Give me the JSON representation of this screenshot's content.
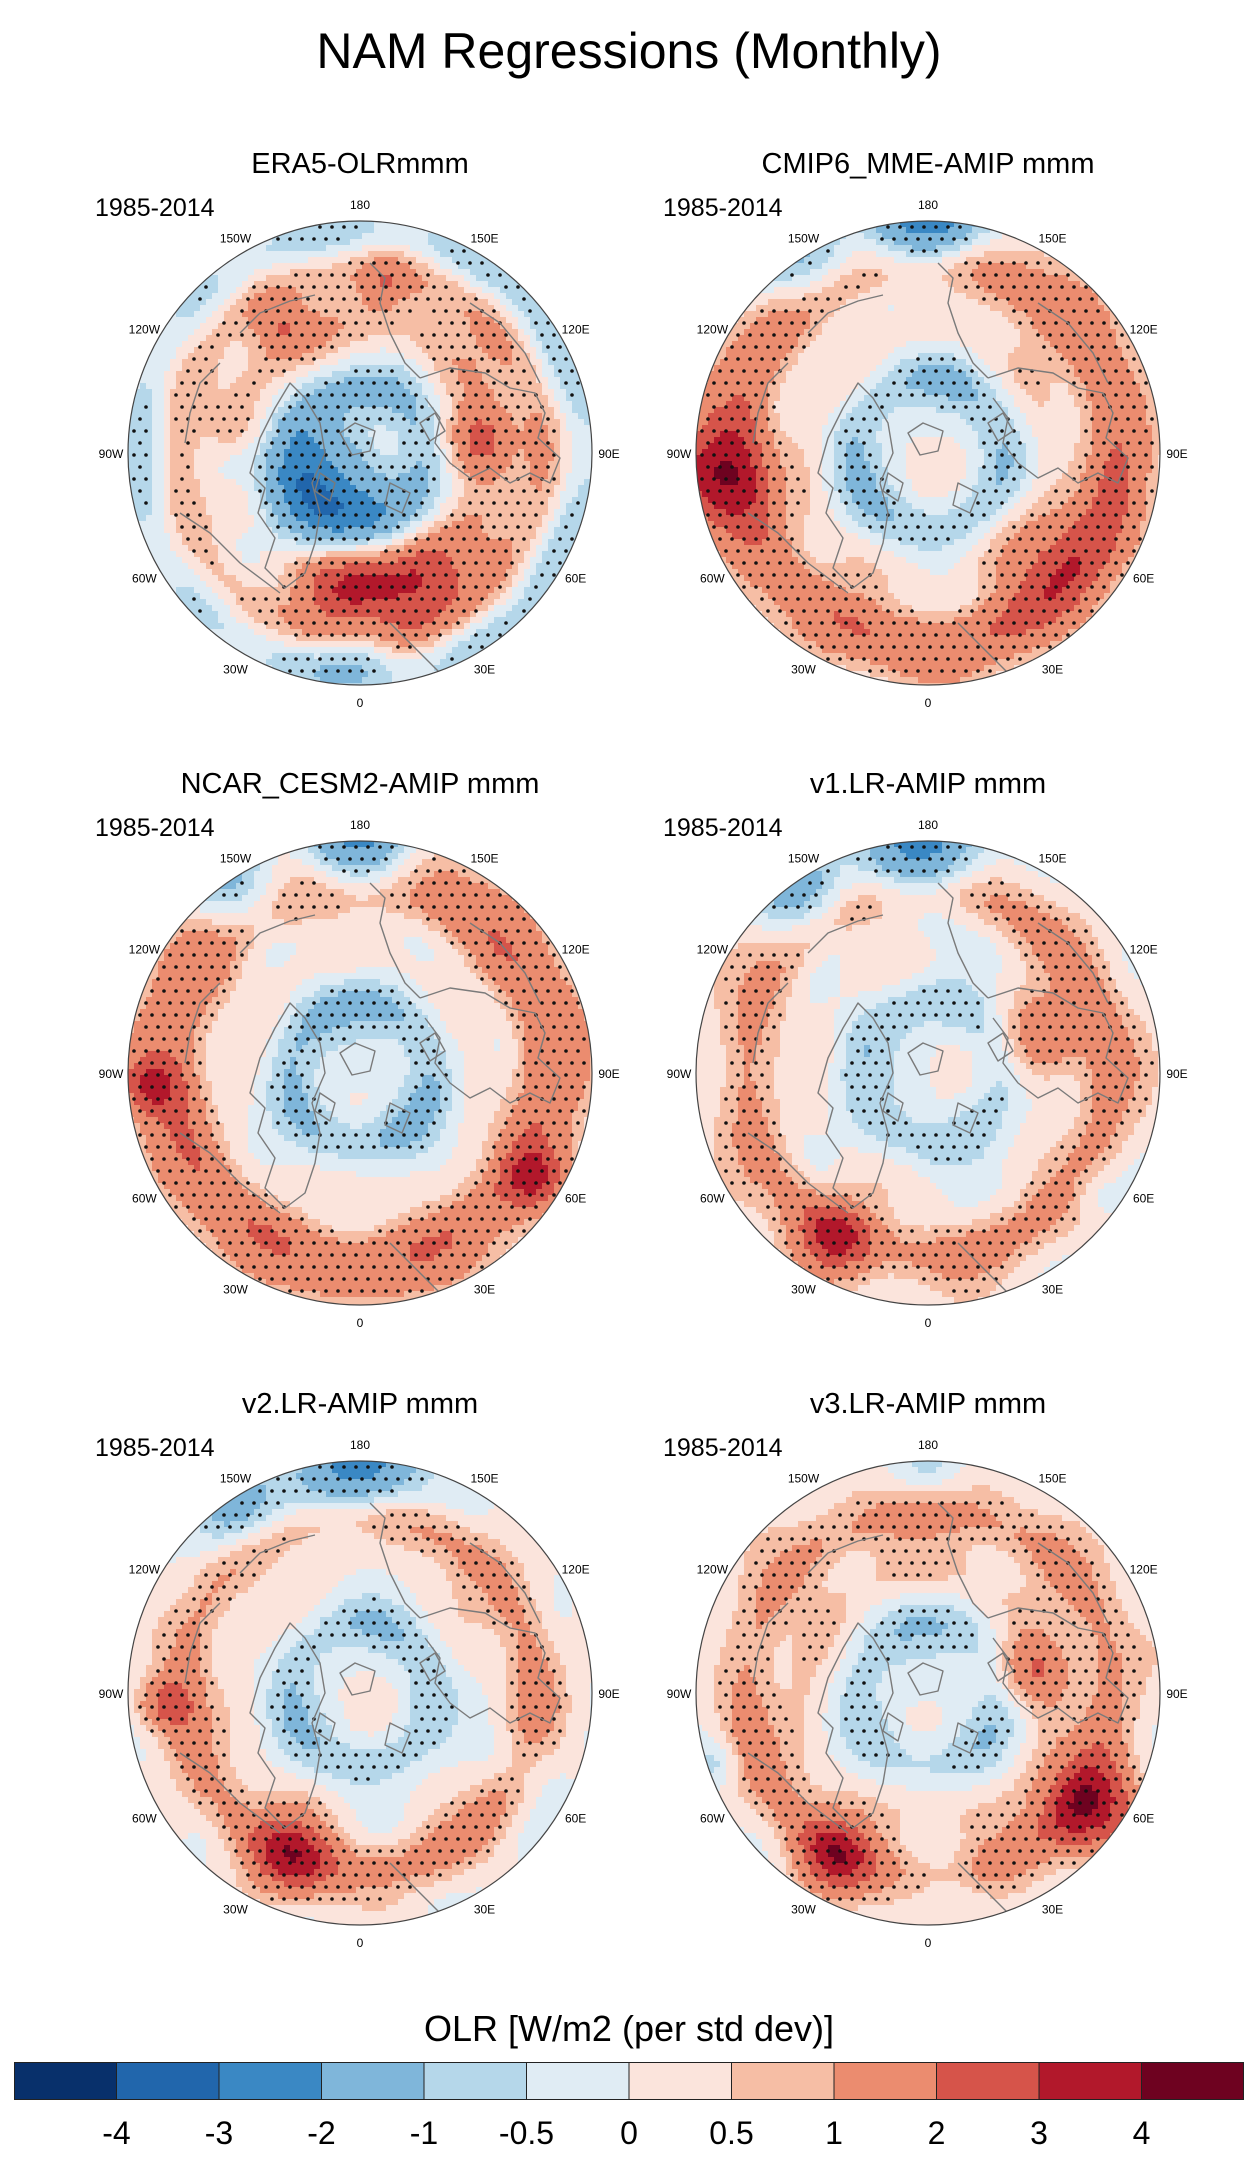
{
  "title": "NAM Regressions (Monthly)",
  "panels": [
    {
      "title": "ERA5-OLRmmm",
      "period": "1985-2014",
      "pattern": "era5"
    },
    {
      "title": "CMIP6_MME-AMIP  mmm",
      "period": "1985-2014",
      "pattern": "cmip6"
    },
    {
      "title": "NCAR_CESM2-AMIP  mmm",
      "period": "1985-2014",
      "pattern": "cesm2"
    },
    {
      "title": "v1.LR-AMIP  mmm",
      "period": "1985-2014",
      "pattern": "v1"
    },
    {
      "title": "v2.LR-AMIP  mmm",
      "period": "1985-2014",
      "pattern": "v2"
    },
    {
      "title": "v3.LR-AMIP  mmm",
      "period": "1985-2014",
      "pattern": "v3"
    }
  ],
  "longitude_labels": [
    "180",
    "150E",
    "120E",
    "90E",
    "60E",
    "30E",
    "0",
    "30W",
    "60W",
    "90W",
    "120W",
    "150W"
  ],
  "colorbar": {
    "title": "OLR [W/m2 (per std dev)]",
    "ticks": [
      "-4",
      "-3",
      "-2",
      "-1",
      "-0.5",
      "0",
      "0.5",
      "1",
      "2",
      "3",
      "4"
    ],
    "colors": [
      "#08306b",
      "#2166ac",
      "#3a88c4",
      "#7fb6da",
      "#b5d7ea",
      "#e0ecf4",
      "#fbe4dc",
      "#f6bea5",
      "#eb8c6f",
      "#d6544a",
      "#b2182b",
      "#6e0220"
    ]
  }
}
